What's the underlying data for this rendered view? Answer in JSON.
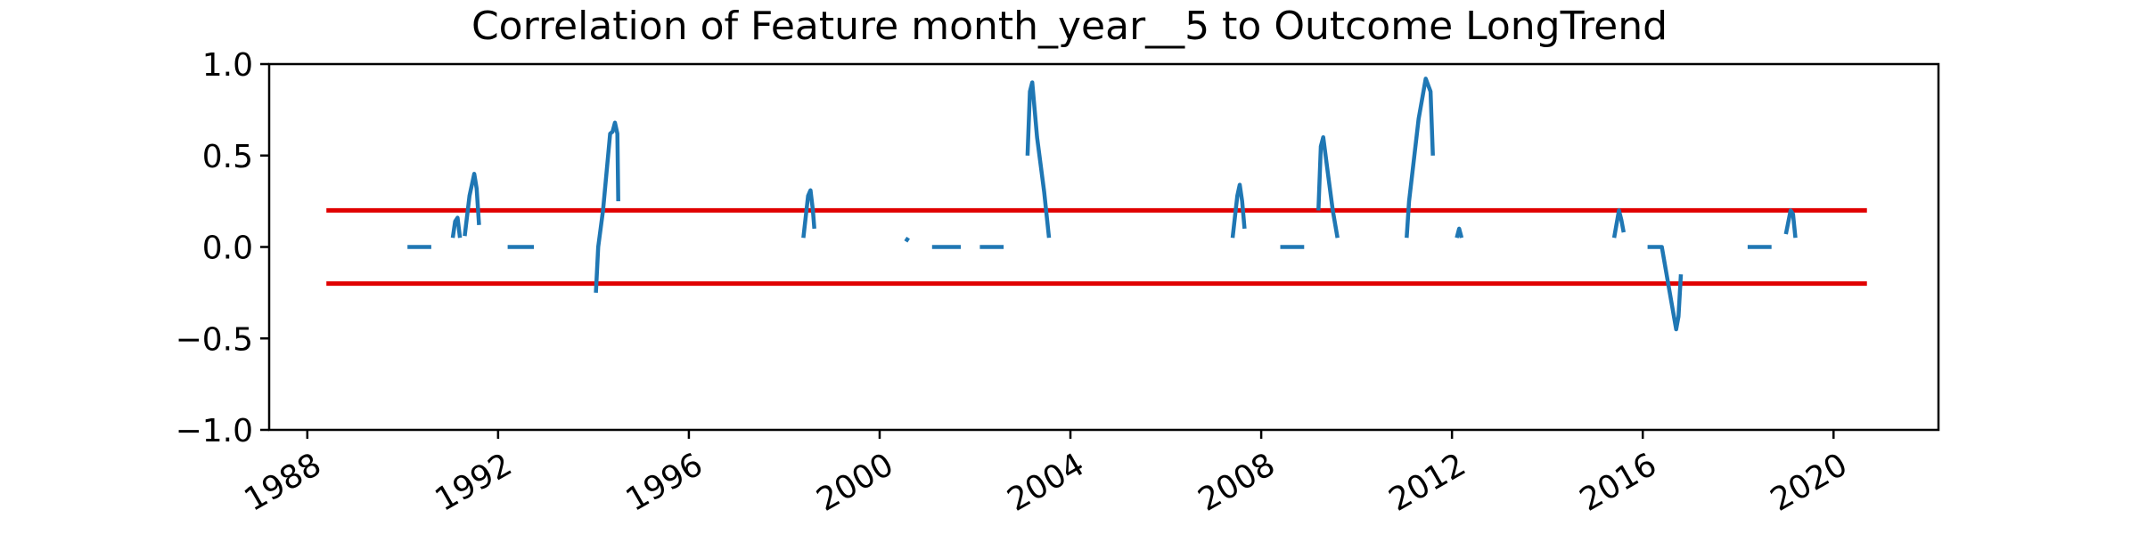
{
  "chart_data": {
    "type": "line",
    "title": "Correlation of Feature month_year__5 to Outcome LongTrend",
    "xlabel": "",
    "ylabel": "",
    "xlim": [
      1987.2,
      2022.2
    ],
    "ylim": [
      -1.0,
      1.0
    ],
    "x_ticks": [
      1988,
      1992,
      1996,
      2000,
      2004,
      2008,
      2012,
      2016,
      2020
    ],
    "x_tick_labels": [
      "1988",
      "1992",
      "1996",
      "2000",
      "2004",
      "2008",
      "2012",
      "2016",
      "2020"
    ],
    "y_ticks": [
      -1.0,
      -0.5,
      0.0,
      0.5,
      1.0
    ],
    "y_tick_labels": [
      "−1.0",
      "−0.5",
      "0.0",
      "0.5",
      "1.0"
    ],
    "grid": false,
    "colors": {
      "series": "#1f77b4",
      "threshold": "#e00000"
    },
    "thresholds": [
      {
        "y": 0.2,
        "x": [
          1988.4,
          2020.7
        ]
      },
      {
        "y": -0.2,
        "x": [
          1988.4,
          2020.7
        ]
      }
    ],
    "series": [
      {
        "segments": [
          [
            [
              1990.1,
              0.0
            ],
            [
              1990.6,
              0.0
            ]
          ],
          [
            [
              1991.05,
              0.05
            ],
            [
              1991.1,
              0.14
            ],
            [
              1991.15,
              0.16
            ],
            [
              1991.2,
              0.05
            ]
          ],
          [
            [
              1991.3,
              0.06
            ],
            [
              1991.4,
              0.28
            ],
            [
              1991.5,
              0.4
            ],
            [
              1991.55,
              0.32
            ],
            [
              1991.6,
              0.12
            ]
          ],
          [
            [
              1992.2,
              0.0
            ],
            [
              1992.75,
              0.0
            ]
          ],
          [
            [
              1994.05,
              -0.25
            ],
            [
              1994.1,
              0.0
            ],
            [
              1994.2,
              0.2
            ],
            [
              1994.35,
              0.62
            ],
            [
              1994.4,
              0.63
            ],
            [
              1994.45,
              0.68
            ],
            [
              1994.5,
              0.62
            ],
            [
              1994.52,
              0.25
            ]
          ],
          [
            [
              1998.4,
              0.05
            ],
            [
              1998.5,
              0.28
            ],
            [
              1998.55,
              0.31
            ],
            [
              1998.6,
              0.2
            ],
            [
              1998.63,
              0.1
            ]
          ],
          [
            [
              2000.55,
              0.03
            ],
            [
              2000.6,
              0.05
            ]
          ],
          [
            [
              2001.1,
              0.0
            ],
            [
              2001.7,
              0.0
            ]
          ],
          [
            [
              2002.1,
              0.0
            ],
            [
              2002.6,
              0.0
            ]
          ],
          [
            [
              2003.1,
              0.5
            ],
            [
              2003.15,
              0.85
            ],
            [
              2003.2,
              0.9
            ],
            [
              2003.3,
              0.6
            ],
            [
              2003.45,
              0.3
            ],
            [
              2003.55,
              0.05
            ]
          ],
          [
            [
              2007.4,
              0.05
            ],
            [
              2007.5,
              0.28
            ],
            [
              2007.55,
              0.34
            ],
            [
              2007.6,
              0.25
            ],
            [
              2007.65,
              0.1
            ]
          ],
          [
            [
              2008.4,
              0.0
            ],
            [
              2008.9,
              0.0
            ]
          ],
          [
            [
              2009.2,
              0.2
            ],
            [
              2009.25,
              0.55
            ],
            [
              2009.3,
              0.6
            ],
            [
              2009.4,
              0.4
            ],
            [
              2009.5,
              0.2
            ],
            [
              2009.6,
              0.05
            ]
          ],
          [
            [
              2011.05,
              0.05
            ],
            [
              2011.1,
              0.25
            ],
            [
              2011.3,
              0.7
            ],
            [
              2011.45,
              0.92
            ],
            [
              2011.55,
              0.85
            ],
            [
              2011.6,
              0.5
            ]
          ],
          [
            [
              2012.1,
              0.05
            ],
            [
              2012.15,
              0.1
            ],
            [
              2012.2,
              0.05
            ]
          ],
          [
            [
              2015.4,
              0.05
            ],
            [
              2015.5,
              0.2
            ],
            [
              2015.55,
              0.15
            ],
            [
              2015.6,
              0.08
            ]
          ],
          [
            [
              2016.1,
              0.0
            ],
            [
              2016.4,
              0.0
            ],
            [
              2016.6,
              -0.3
            ],
            [
              2016.7,
              -0.45
            ],
            [
              2016.75,
              -0.38
            ],
            [
              2016.8,
              -0.15
            ]
          ],
          [
            [
              2018.2,
              0.0
            ],
            [
              2018.7,
              0.0
            ]
          ],
          [
            [
              2019.0,
              0.07
            ],
            [
              2019.1,
              0.2
            ],
            [
              2019.15,
              0.18
            ],
            [
              2019.2,
              0.05
            ]
          ]
        ]
      }
    ]
  }
}
